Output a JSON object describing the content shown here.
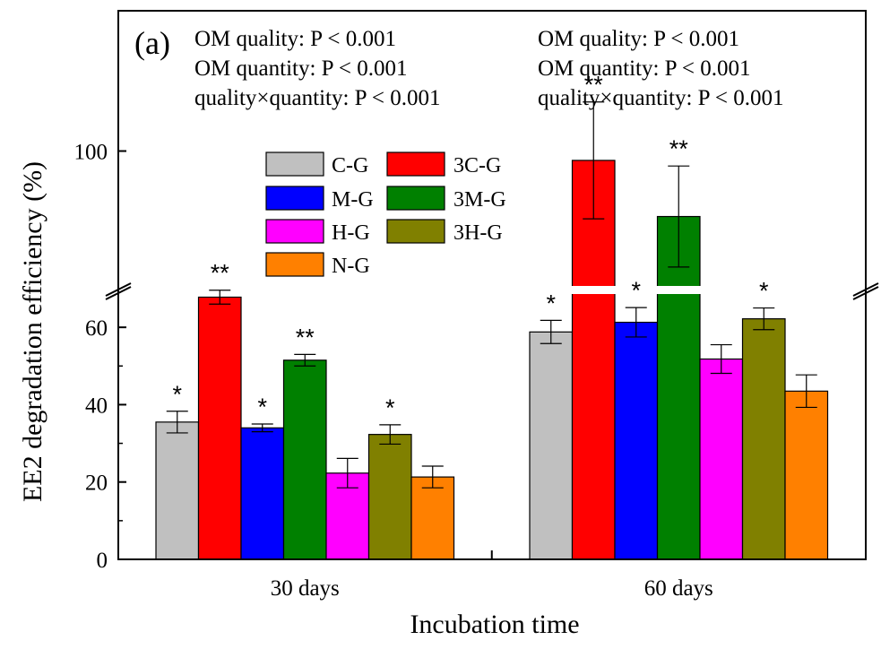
{
  "chart_data": {
    "type": "bar",
    "panel_label": "(a)",
    "xlabel": "Incubation time",
    "ylabel": "EE2 degradation efficiency (%)",
    "categories": [
      "30 days",
      "60 days"
    ],
    "axis_break": {
      "lower_range": [
        0,
        70
      ],
      "upper_range": [
        70,
        130
      ]
    },
    "yticks_lower": [
      0,
      20,
      40,
      60
    ],
    "yticks_upper": [
      100
    ],
    "series": [
      {
        "name": "C-G",
        "color": "#c0c0c0",
        "values": [
          35.5,
          58.8
        ],
        "errors": [
          2.8,
          3.0
        ],
        "significance": [
          "*",
          "*"
        ]
      },
      {
        "name": "3C-G",
        "color": "#ff0000",
        "values": [
          67.8,
          98.0
        ],
        "errors": [
          1.8,
          12.5
        ],
        "significance": [
          "**",
          "**"
        ]
      },
      {
        "name": "M-G",
        "color": "#0000ff",
        "values": [
          34.0,
          61.3
        ],
        "errors": [
          1.0,
          3.8
        ],
        "significance": [
          "*",
          "*"
        ]
      },
      {
        "name": "3M-G",
        "color": "#008000",
        "values": [
          51.5,
          86.0
        ],
        "errors": [
          1.5,
          10.8
        ],
        "significance": [
          "**",
          "**"
        ]
      },
      {
        "name": "H-G",
        "color": "#ff00ff",
        "values": [
          22.3,
          51.8
        ],
        "errors": [
          3.8,
          3.7
        ],
        "significance": [
          "",
          ""
        ]
      },
      {
        "name": "3H-G",
        "color": "#808000",
        "values": [
          32.3,
          62.2
        ],
        "errors": [
          2.5,
          2.8
        ],
        "significance": [
          "*",
          "*"
        ]
      },
      {
        "name": "N-G",
        "color": "#ff8000",
        "values": [
          21.3,
          43.5
        ],
        "errors": [
          2.8,
          4.2
        ],
        "significance": [
          "",
          ""
        ]
      }
    ],
    "annotations": [
      [
        "OM quality: P < 0.001",
        "OM quantity: P < 0.001",
        "quality×quantity: P < 0.001"
      ],
      [
        "OM quality: P < 0.001",
        "OM quantity: P < 0.001",
        "quality×quantity: P < 0.001"
      ]
    ],
    "legend_position": "upper-middle",
    "grid": false
  }
}
